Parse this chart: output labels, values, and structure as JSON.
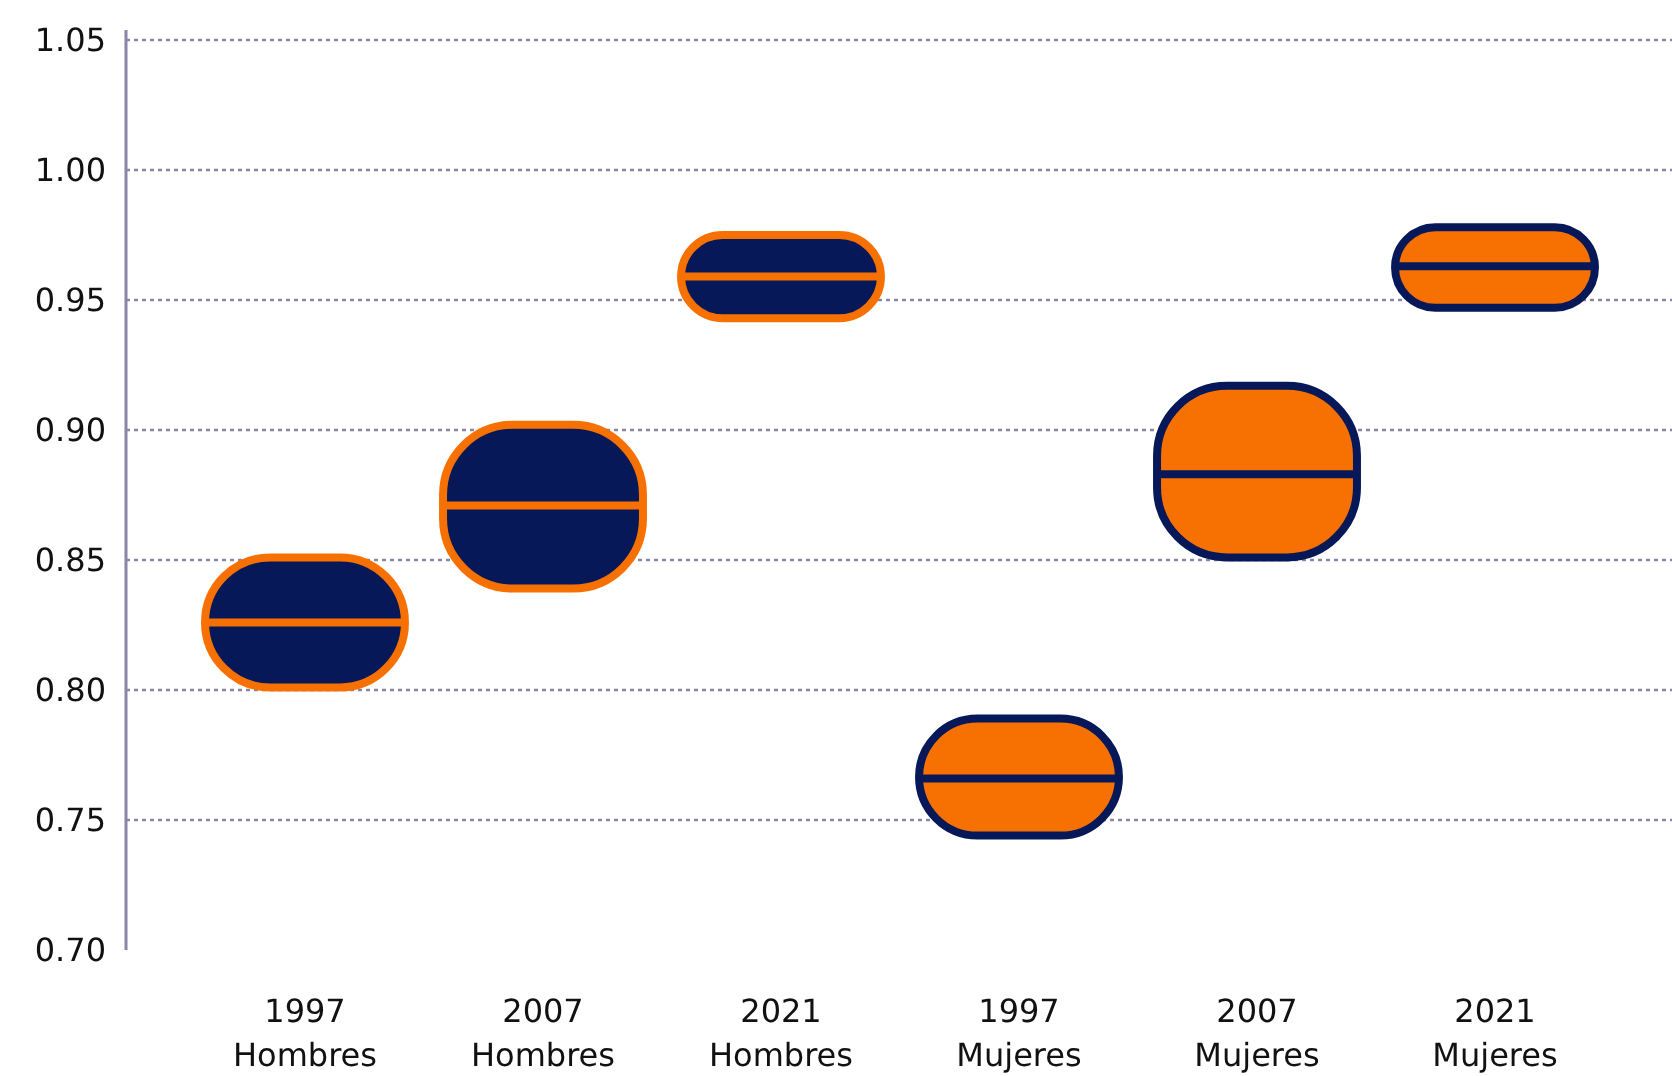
{
  "chart_data": {
    "type": "box",
    "categories": [
      "1997 Hombres",
      "2007 Hombres",
      "2021 Hombres",
      "1997 Mujeres",
      "2007 Mujeres",
      "2021 Mujeres"
    ],
    "series": [
      {
        "color": "#061858",
        "boxes": [
          {
            "low": 0.801,
            "q1": 0.801,
            "median": 0.826,
            "q3": 0.851,
            "high": 0.851
          },
          {
            "low": 0.839,
            "q1": 0.839,
            "median": 0.871,
            "q3": 0.902,
            "high": 0.902
          },
          {
            "low": 0.943,
            "q1": 0.943,
            "median": 0.959,
            "q3": 0.975,
            "high": 0.975
          },
          null,
          null,
          null
        ]
      },
      {
        "color": "#f77102",
        "boxes": [
          null,
          null,
          null,
          {
            "low": 0.744,
            "q1": 0.744,
            "median": 0.766,
            "q3": 0.789,
            "high": 0.789
          },
          {
            "low": 0.851,
            "q1": 0.851,
            "median": 0.883,
            "q3": 0.917,
            "high": 0.917
          },
          {
            "low": 0.947,
            "q1": 0.947,
            "median": 0.963,
            "q3": 0.978,
            "high": 0.978
          }
        ]
      }
    ],
    "ylim": [
      0.7,
      1.05
    ],
    "yticks": [
      {
        "value": 0.7,
        "label": "0.70"
      },
      {
        "value": 0.75,
        "label": "0.75"
      },
      {
        "value": 0.8,
        "label": "0.80"
      },
      {
        "value": 0.85,
        "label": "0.85"
      },
      {
        "value": 0.9,
        "label": "0.90"
      },
      {
        "value": 0.95,
        "label": "0.95"
      },
      {
        "value": 1.0,
        "label": "1.00"
      },
      {
        "value": 1.05,
        "label": "1.05"
      }
    ],
    "grid": "y"
  }
}
